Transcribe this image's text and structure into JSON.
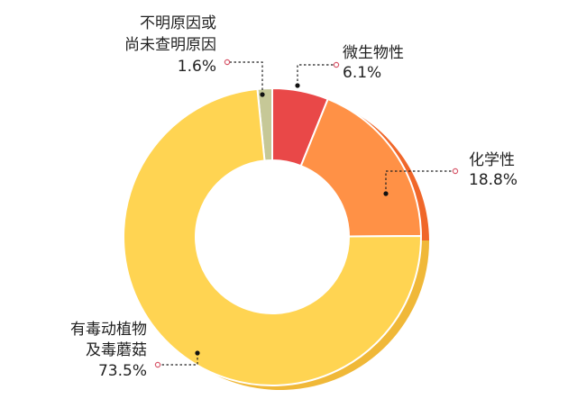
{
  "chart_data": {
    "type": "pie",
    "title": "",
    "categories": [
      "微生物性",
      "化学性",
      "有毒动植物及毒蘑菇",
      "不明原因或尚未查明原因"
    ],
    "values": [
      6.1,
      18.8,
      73.5,
      1.6
    ],
    "display_lines": [
      [
        "微生物性"
      ],
      [
        "化学性"
      ],
      [
        "有毒动植物",
        "及毒蘑菇"
      ],
      [
        "不明原因或",
        "尚未查明原因"
      ]
    ],
    "value_labels": [
      "6.1%",
      "18.8%",
      "73.5%",
      "1.6%"
    ],
    "colors": [
      "#E94848",
      "#FF9146",
      "#FFD452",
      "#C6C897"
    ],
    "side_colors": [
      "#C93D3D",
      "#F0672A",
      "#F0B838",
      "#A8AA7C"
    ],
    "legend": "none",
    "donut": true
  }
}
